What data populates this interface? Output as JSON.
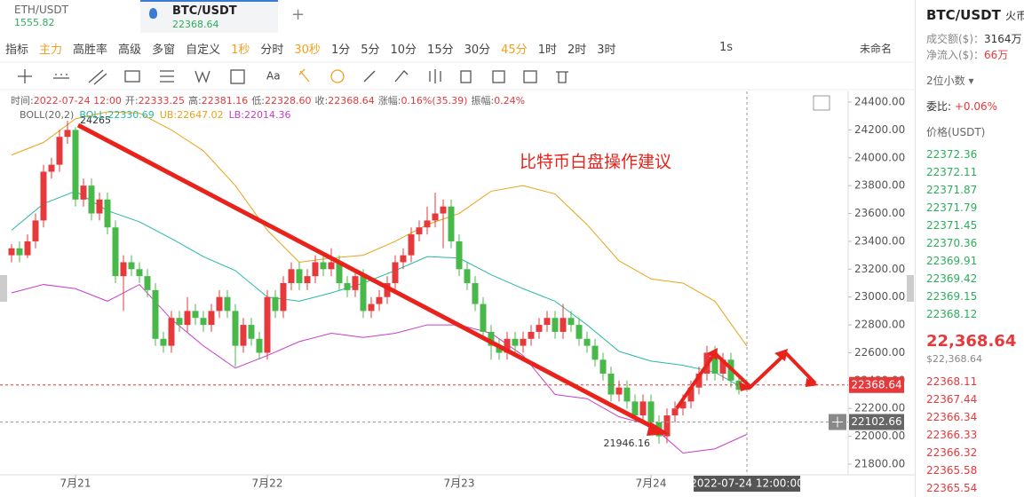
{
  "tabs": [
    {
      "name": "ETH/USDT",
      "price": "1555.82"
    },
    {
      "name": "BTC/USDT",
      "price": "22368.64"
    }
  ],
  "tab_add": "+",
  "toolbar": {
    "items": [
      {
        "text": "指标",
        "active": false
      },
      {
        "text": "主力",
        "active": true
      },
      {
        "text": "高胜率",
        "active": false
      },
      {
        "text": "高级",
        "active": false
      },
      {
        "text": "多窗",
        "active": false
      },
      {
        "text": "自定义",
        "active": false
      },
      {
        "text": "1秒",
        "active": true
      },
      {
        "text": "分时",
        "active": false
      },
      {
        "text": "30秒",
        "active": true
      },
      {
        "text": "1分",
        "active": false
      },
      {
        "text": "5分",
        "active": false
      },
      {
        "text": "10分",
        "active": false
      },
      {
        "text": "15分",
        "active": false
      },
      {
        "text": "30分",
        "active": false
      },
      {
        "text": "45分",
        "active": true
      },
      {
        "text": "1时",
        "active": false
      },
      {
        "text": "2时",
        "active": false
      },
      {
        "text": "3时",
        "active": false
      }
    ],
    "interval": "1s",
    "layout_name": "未命名"
  },
  "drawing_tools": {
    "text_tool": "Aa"
  },
  "chart_data": {
    "type": "candlestick",
    "info": [
      {
        "label": "时间:",
        "value": "2022-07-24 12:00"
      },
      {
        "label": "开:",
        "value": "22333.25"
      },
      {
        "label": "高:",
        "value": "22381.16"
      },
      {
        "label": "低:",
        "value": "22328.60"
      },
      {
        "label": "收:",
        "value": "22368.64"
      },
      {
        "label": "涨幅:",
        "value": "0.16%(35.39)"
      },
      {
        "label": "振幅:",
        "value": "0.24%"
      }
    ],
    "indicator": [
      {
        "text": "BOLL(20,2)",
        "color": "#666666"
      },
      {
        "text": "BOLL:22330.69",
        "color": "#26b9a6"
      },
      {
        "text": "UB:22647.02",
        "color": "#e8a317"
      },
      {
        "text": "LB:22014.36",
        "color": "#c73dc7"
      }
    ],
    "annotation": "比特币白盘操作建议",
    "up_color": "#e5393b",
    "down_color": "#48b84a",
    "categories": [
      null,
      null,
      null,
      null,
      null,
      null,
      null,
      null,
      "7月21",
      null,
      null,
      null,
      null,
      null,
      null,
      null,
      null,
      null,
      null,
      null,
      null,
      null,
      null,
      null,
      null,
      null,
      null,
      null,
      null,
      null,
      null,
      null,
      "7月22",
      null,
      null,
      null,
      null,
      null,
      null,
      null,
      null,
      null,
      null,
      null,
      null,
      null,
      null,
      null,
      null,
      null,
      null,
      null,
      null,
      null,
      null,
      null,
      "7月23",
      null,
      null,
      null,
      null,
      null,
      null,
      null,
      null,
      null,
      null,
      null,
      null,
      null,
      null,
      null,
      null,
      null,
      null,
      null,
      null,
      null,
      null,
      null,
      "7月24",
      null,
      null,
      null,
      null,
      null,
      null,
      null,
      null,
      null,
      null,
      null,
      null
    ],
    "candles": [
      [
        23300,
        23380,
        23250,
        23350
      ],
      [
        23350,
        23400,
        23250,
        23300
      ],
      [
        23300,
        23450,
        23280,
        23400
      ],
      [
        23400,
        23600,
        23350,
        23550
      ],
      [
        23550,
        23950,
        23500,
        23900
      ],
      [
        23900,
        24000,
        23850,
        23950
      ],
      [
        23950,
        24200,
        23900,
        24150
      ],
      [
        24150,
        24265,
        24100,
        24200
      ],
      [
        24200,
        24220,
        23650,
        23700
      ],
      [
        23700,
        23850,
        23650,
        23800
      ],
      [
        23800,
        23850,
        23550,
        23600
      ],
      [
        23600,
        23750,
        23550,
        23700
      ],
      [
        23700,
        23750,
        23450,
        23500
      ],
      [
        23500,
        23550,
        23100,
        23150
      ],
      [
        23150,
        23300,
        22900,
        23250
      ],
      [
        23250,
        23300,
        23150,
        23200
      ],
      [
        23200,
        23250,
        23100,
        23150
      ],
      [
        23150,
        23200,
        23000,
        23050
      ],
      [
        23050,
        23100,
        22650,
        22700
      ],
      [
        22700,
        22750,
        22600,
        22650
      ],
      [
        22650,
        22900,
        22600,
        22850
      ],
      [
        22850,
        22900,
        22750,
        22800
      ],
      [
        22800,
        23000,
        22750,
        22900
      ],
      [
        22900,
        22950,
        22800,
        22850
      ],
      [
        22850,
        22900,
        22750,
        22800
      ],
      [
        22800,
        22950,
        22750,
        22900
      ],
      [
        22900,
        23050,
        22850,
        23000
      ],
      [
        23000,
        23050,
        22850,
        22900
      ],
      [
        22900,
        22950,
        22500,
        22650
      ],
      [
        22650,
        22850,
        22600,
        22800
      ],
      [
        22800,
        22850,
        22650,
        22700
      ],
      [
        22700,
        22750,
        22550,
        22600
      ],
      [
        22600,
        23050,
        22550,
        23000
      ],
      [
        23000,
        23050,
        22850,
        22900
      ],
      [
        22900,
        23150,
        22850,
        23100
      ],
      [
        23100,
        23250,
        23050,
        23200
      ],
      [
        23200,
        23250,
        23050,
        23100
      ],
      [
        23100,
        23200,
        23050,
        23150
      ],
      [
        23150,
        23300,
        23100,
        23250
      ],
      [
        23250,
        23300,
        23150,
        23200
      ],
      [
        23200,
        23350,
        23150,
        23250
      ],
      [
        23250,
        23300,
        23050,
        23100
      ],
      [
        23100,
        23150,
        23000,
        23050
      ],
      [
        23050,
        23200,
        23000,
        23150
      ],
      [
        23150,
        23200,
        22850,
        22900
      ],
      [
        22900,
        23000,
        22850,
        22950
      ],
      [
        22950,
        23050,
        22900,
        23000
      ],
      [
        23000,
        23150,
        22950,
        23100
      ],
      [
        23100,
        23300,
        23050,
        23250
      ],
      [
        23250,
        23350,
        23200,
        23300
      ],
      [
        23300,
        23500,
        23250,
        23450
      ],
      [
        23450,
        23550,
        23400,
        23500
      ],
      [
        23500,
        23650,
        23450,
        23550
      ],
      [
        23550,
        23750,
        23500,
        23600
      ],
      [
        23600,
        23700,
        23350,
        23650
      ],
      [
        23650,
        23700,
        23350,
        23400
      ],
      [
        23400,
        23450,
        23150,
        23200
      ],
      [
        23200,
        23250,
        23050,
        23100
      ],
      [
        23100,
        23150,
        22900,
        22950
      ],
      [
        22950,
        23000,
        22700,
        22750
      ],
      [
        22750,
        22800,
        22550,
        22650
      ],
      [
        22650,
        22700,
        22550,
        22600
      ],
      [
        22600,
        22750,
        22550,
        22700
      ],
      [
        22700,
        22750,
        22600,
        22650
      ],
      [
        22650,
        22750,
        22600,
        22700
      ],
      [
        22700,
        22800,
        22650,
        22750
      ],
      [
        22750,
        22850,
        22700,
        22800
      ],
      [
        22800,
        22900,
        22750,
        22850
      ],
      [
        22850,
        22900,
        22700,
        22750
      ],
      [
        22750,
        22950,
        22700,
        22850
      ],
      [
        22850,
        22900,
        22750,
        22800
      ],
      [
        22800,
        22850,
        22650,
        22700
      ],
      [
        22700,
        22750,
        22600,
        22650
      ],
      [
        22650,
        22700,
        22500,
        22550
      ],
      [
        22550,
        22600,
        22400,
        22450
      ],
      [
        22450,
        22500,
        22250,
        22300
      ],
      [
        22300,
        22400,
        22250,
        22350
      ],
      [
        22350,
        22400,
        22200,
        22250
      ],
      [
        22250,
        22300,
        22100,
        22150
      ],
      [
        22150,
        22300,
        22100,
        22250
      ],
      [
        22250,
        22300,
        22050,
        22100
      ],
      [
        22100,
        22150,
        21946.16,
        22000
      ],
      [
        22000,
        22200,
        21950,
        22150
      ],
      [
        22150,
        22250,
        22100,
        22200
      ],
      [
        22200,
        22300,
        22150,
        22250
      ],
      [
        22250,
        22400,
        22200,
        22350
      ],
      [
        22350,
        22500,
        22300,
        22450
      ],
      [
        22450,
        22650,
        22400,
        22600
      ],
      [
        22600,
        22650,
        22400,
        22450
      ],
      [
        22450,
        22600,
        22400,
        22550
      ],
      [
        22550,
        22600,
        22350,
        22400
      ],
      [
        22400,
        22450,
        22300,
        22333.25
      ],
      [
        22333.25,
        22381.16,
        22328.6,
        22368.64
      ]
    ],
    "boll": {
      "x": [
        0,
        4,
        8,
        12,
        16,
        20,
        24,
        28,
        32,
        36,
        40,
        44,
        48,
        52,
        56,
        60,
        64,
        68,
        72,
        76,
        80,
        84,
        88,
        92
      ],
      "mid": [
        23480,
        23670,
        23760,
        23620,
        23540,
        23420,
        23290,
        23190,
        23000,
        22970,
        23030,
        23100,
        23190,
        23290,
        23280,
        23160,
        23060,
        22970,
        22800,
        22610,
        22540,
        22510,
        22460,
        22330.69
      ],
      "ub": [
        24020,
        24110,
        24280,
        24330,
        24320,
        24200,
        24050,
        23800,
        23480,
        23250,
        23280,
        23300,
        23400,
        23520,
        23600,
        23760,
        23800,
        23740,
        23520,
        23260,
        23130,
        23100,
        22970,
        22647.02
      ],
      "lb": [
        23030,
        23090,
        23060,
        22970,
        23090,
        22840,
        22650,
        22490,
        22580,
        22680,
        22740,
        22710,
        22740,
        22800,
        22800,
        22740,
        22580,
        22300,
        22270,
        22140,
        22080,
        21880,
        21910,
        22014.36
      ],
      "colors": {
        "mid": "#26b9a6",
        "ub": "#e8a317",
        "lb": "#c73dc7"
      }
    },
    "ylim": [
      21800,
      24400
    ],
    "yticks": [
      {
        "value": 21800,
        "label": "21800.00"
      },
      {
        "value": 22000,
        "label": "22000.00"
      },
      {
        "value": 22200,
        "label": "22200.00"
      },
      {
        "value": 22400,
        "label": "22400.00"
      },
      {
        "value": 22600,
        "label": "22600.00"
      },
      {
        "value": 22800,
        "label": "22800.00"
      },
      {
        "value": 23000,
        "label": "23000.00"
      },
      {
        "value": 23200,
        "label": "23200.00"
      },
      {
        "value": 23400,
        "label": "23400.00"
      },
      {
        "value": 23600,
        "label": "23600.00"
      },
      {
        "value": 23800,
        "label": "23800.00"
      },
      {
        "value": 24000,
        "label": "24000.00"
      },
      {
        "value": 24200,
        "label": "24200.00"
      },
      {
        "value": 24400,
        "label": "24400.00"
      }
    ],
    "crosshair": {
      "price": 22102.66,
      "time": "2022-07-24 12:00:00"
    }
  },
  "panel": {
    "symbol": "BTC/USDT",
    "exchange": "火币",
    "turnover_label": "成交额($)：",
    "turnover": "3164万",
    "inflow_label": "净流入($)：",
    "inflow": "66万",
    "decimals": "2位小数",
    "ratio_label": "委比:",
    "ratio": "+0.06%",
    "price_header": "价格(USDT)",
    "asks": [
      "22372.36",
      "22372.11",
      "22371.87",
      "22371.79",
      "22371.45",
      "22370.36",
      "22369.91",
      "22369.42",
      "22369.15",
      "22368.12"
    ],
    "last": "22,368.64",
    "last_usd": "$22,368.64",
    "bids": [
      "22368.11",
      "22367.44",
      "22366.34",
      "22366.33",
      "22366.32",
      "22365.58",
      "22365.54"
    ]
  }
}
